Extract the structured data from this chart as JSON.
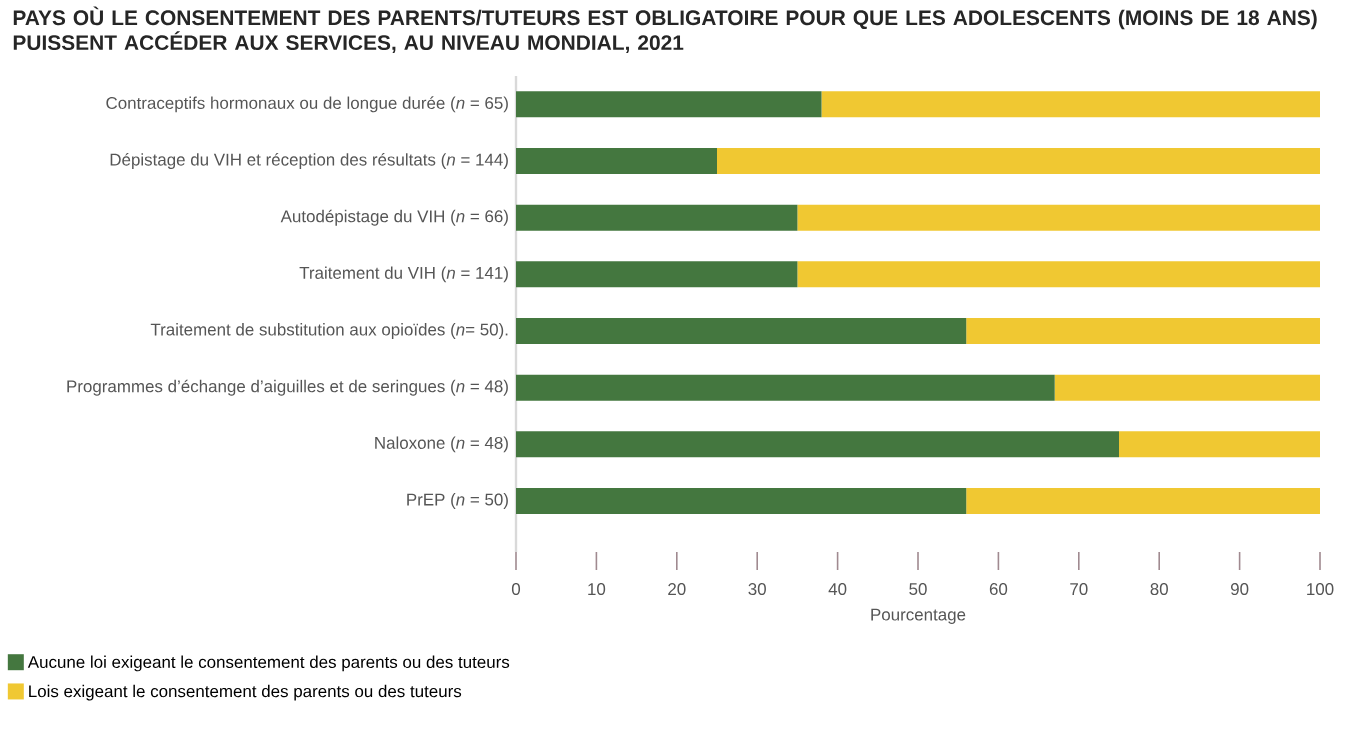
{
  "chart_data": {
    "type": "bar",
    "orientation": "horizontal",
    "stacked": true,
    "title": "PAYS OÙ LE CONSENTEMENT DES PARENTS/TUTEURS EST OBLIGATOIRE POUR QUE LES ADOLESCENTS (MOINS DE 18 ANS) PUISSENT ACCÉDER AUX SERVICES, AU NIVEAU MONDIAL, 2021",
    "xlabel": "Pourcentage",
    "categories": [
      "Contraceptifs hormonaux ou de longue durée (*n* = 65)",
      "Dépistage du VIH et réception des résultats (*n* = 144)",
      "Autodépistage du VIH (*n* = 66)",
      "Traitement du VIH (*n* = 141)",
      "Traitement de substitution aux opioïdes (*n*= 50).",
      "Programmes d’échange d’aiguilles et de seringues (*n* = 48)",
      "Naloxone (*n* = 48)",
      "PrEP (*n* = 50)"
    ],
    "series": [
      {
        "name": "Aucune loi exigeant le consentement des parents ou des tuteurs",
        "color": "#44773f",
        "values": [
          38,
          25,
          35,
          35,
          56,
          67,
          75,
          56
        ]
      },
      {
        "name": "Lois exigeant le consentement des parents ou des tuteurs",
        "color": "#f0c832",
        "values": [
          62,
          75,
          65,
          65,
          44,
          33,
          25,
          44
        ]
      }
    ],
    "xlim": [
      0,
      100
    ],
    "xticks": [
      0,
      10,
      20,
      30,
      40,
      50,
      60,
      70,
      80,
      90,
      100
    ],
    "legend": "bottom left"
  }
}
